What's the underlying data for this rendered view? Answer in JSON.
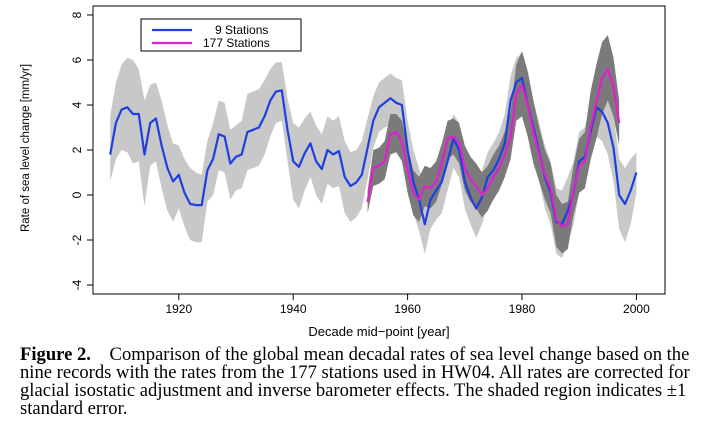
{
  "chart_data": {
    "type": "line",
    "xlabel": "Decade mid−point [year]",
    "ylabel": "Rate of sea level change [mm/yr]",
    "xlim": [
      1905,
      2005
    ],
    "ylim": [
      -4.4,
      8.4
    ],
    "x_ticks": [
      1920,
      1940,
      1960,
      1980,
      2000
    ],
    "y_ticks": [
      -4,
      -2,
      0,
      2,
      4,
      6,
      8
    ],
    "grid": false,
    "legend_position": "top-left",
    "series": [
      {
        "name": "9 Stations",
        "color": "#1f3fe0",
        "band_color": "#c8c8c8",
        "x": [
          1908,
          1909,
          1910,
          1911,
          1912,
          1913,
          1914,
          1915,
          1916,
          1917,
          1918,
          1919,
          1920,
          1921,
          1922,
          1923,
          1924,
          1925,
          1926,
          1927,
          1928,
          1929,
          1930,
          1931,
          1932,
          1933,
          1934,
          1935,
          1936,
          1937,
          1938,
          1939,
          1940,
          1941,
          1942,
          1943,
          1944,
          1945,
          1946,
          1947,
          1948,
          1949,
          1950,
          1951,
          1952,
          1953,
          1954,
          1955,
          1956,
          1957,
          1958,
          1959,
          1960,
          1961,
          1962,
          1963,
          1964,
          1965,
          1966,
          1967,
          1968,
          1969,
          1970,
          1971,
          1972,
          1973,
          1974,
          1975,
          1976,
          1977,
          1978,
          1979,
          1980,
          1981,
          1982,
          1983,
          1984,
          1985,
          1986,
          1987,
          1988,
          1989,
          1990,
          1991,
          1992,
          1993,
          1994,
          1995,
          1996,
          1997,
          1998,
          1999,
          2000
        ],
        "y": [
          1.8,
          3.2,
          3.8,
          3.9,
          3.6,
          3.6,
          1.8,
          3.2,
          3.4,
          2.2,
          1.2,
          0.6,
          0.9,
          0.1,
          -0.4,
          -0.45,
          -0.45,
          1.1,
          1.6,
          2.7,
          2.6,
          1.4,
          1.7,
          1.8,
          2.8,
          2.9,
          3.0,
          3.5,
          4.2,
          4.6,
          4.65,
          2.9,
          1.5,
          1.25,
          1.85,
          2.3,
          1.5,
          1.15,
          2.0,
          1.8,
          1.95,
          0.8,
          0.4,
          0.55,
          0.9,
          2.1,
          3.3,
          3.9,
          4.1,
          4.3,
          4.1,
          4.0,
          2.0,
          0.6,
          -0.2,
          -1.3,
          -0.2,
          0.2,
          0.6,
          1.5,
          2.5,
          2.0,
          0.6,
          -0.1,
          -0.6,
          -0.1,
          0.8,
          1.1,
          1.6,
          2.3,
          4.2,
          5.0,
          5.2,
          4.0,
          3.0,
          1.9,
          0.8,
          0.1,
          -1.2,
          -1.3,
          -0.7,
          0.1,
          1.5,
          1.7,
          2.8,
          3.9,
          3.7,
          3.2,
          2.1,
          0.0,
          -0.4,
          0.2,
          1.0
        ],
        "upper": [
          3.5,
          5.0,
          5.8,
          6.1,
          6.0,
          5.6,
          4.2,
          4.9,
          5.0,
          4.2,
          3.1,
          2.3,
          2.2,
          1.6,
          1.2,
          1.0,
          0.9,
          2.4,
          3.2,
          4.2,
          4.1,
          2.9,
          3.1,
          3.3,
          4.5,
          4.6,
          4.7,
          5.1,
          5.6,
          5.9,
          5.9,
          4.3,
          3.2,
          3.0,
          3.4,
          3.7,
          3.1,
          2.7,
          3.5,
          3.3,
          3.5,
          2.4,
          1.9,
          2.0,
          2.4,
          3.4,
          4.4,
          5.0,
          5.2,
          5.4,
          5.2,
          5.1,
          3.3,
          2.0,
          1.2,
          0.2,
          1.1,
          1.5,
          1.9,
          2.7,
          3.6,
          3.2,
          1.8,
          1.1,
          0.6,
          1.1,
          1.9,
          2.3,
          2.8,
          3.6,
          5.3,
          6.1,
          6.3,
          5.1,
          4.2,
          3.2,
          2.2,
          1.5,
          0.3,
          0.2,
          0.8,
          1.5,
          2.8,
          3.0,
          4.1,
          5.2,
          5.0,
          4.6,
          3.6,
          1.6,
          1.2,
          1.6,
          1.9
        ],
        "lower": [
          0.6,
          1.6,
          2.0,
          1.9,
          1.4,
          1.5,
          -0.5,
          1.3,
          1.5,
          0.3,
          -0.7,
          -1.2,
          -0.6,
          -1.4,
          -2.0,
          -2.1,
          -2.1,
          -0.3,
          0.0,
          1.1,
          1.0,
          -0.2,
          0.2,
          0.3,
          1.1,
          1.2,
          1.3,
          1.8,
          2.6,
          3.2,
          3.3,
          1.5,
          -0.2,
          -0.6,
          0.2,
          0.8,
          0.0,
          -0.4,
          0.5,
          0.3,
          0.4,
          -0.8,
          -1.2,
          -1.0,
          -0.6,
          0.7,
          2.1,
          2.8,
          3.0,
          3.1,
          2.9,
          2.7,
          0.6,
          -0.8,
          -1.6,
          -2.6,
          -1.5,
          -1.1,
          -0.8,
          0.2,
          1.2,
          0.8,
          -0.6,
          -1.3,
          -1.9,
          -1.3,
          -0.4,
          0.0,
          0.4,
          1.0,
          3.0,
          3.9,
          4.1,
          2.9,
          1.8,
          0.6,
          -0.6,
          -1.3,
          -2.6,
          -2.8,
          -2.2,
          -1.3,
          0.1,
          0.3,
          1.5,
          2.6,
          2.4,
          1.8,
          0.6,
          -1.5,
          -2.1,
          -1.3,
          0.1
        ]
      },
      {
        "name": "177 Stations",
        "color": "#e020d0",
        "band_color": "#7a7a7a",
        "x": [
          1953,
          1954,
          1955,
          1956,
          1957,
          1958,
          1959,
          1960,
          1961,
          1962,
          1963,
          1964,
          1965,
          1966,
          1967,
          1968,
          1969,
          1970,
          1971,
          1972,
          1973,
          1974,
          1975,
          1976,
          1977,
          1978,
          1979,
          1980,
          1981,
          1982,
          1983,
          1984,
          1985,
          1986,
          1987,
          1988,
          1989,
          1990,
          1991,
          1992,
          1993,
          1994,
          1995,
          1996,
          1997
        ],
        "y": [
          -0.3,
          1.2,
          1.3,
          1.5,
          2.7,
          2.8,
          2.4,
          1.1,
          0.1,
          -0.2,
          0.4,
          0.3,
          0.6,
          1.4,
          2.5,
          2.6,
          2.3,
          1.2,
          0.7,
          0.4,
          0.0,
          0.3,
          0.8,
          1.2,
          1.8,
          2.6,
          4.5,
          4.9,
          4.0,
          2.8,
          1.8,
          0.9,
          0.3,
          -1.1,
          -1.4,
          -1.3,
          0.2,
          1.3,
          1.5,
          3.0,
          4.1,
          5.2,
          5.6,
          4.8,
          3.2
        ],
        "upper": [
          0.2,
          2.0,
          2.1,
          2.4,
          3.6,
          3.6,
          3.3,
          2.1,
          1.1,
          0.8,
          1.3,
          1.2,
          1.5,
          2.3,
          3.3,
          3.4,
          3.2,
          2.2,
          1.7,
          1.4,
          1.0,
          1.3,
          1.8,
          2.2,
          2.8,
          3.7,
          5.8,
          6.4,
          5.5,
          4.2,
          3.0,
          2.0,
          1.4,
          0.0,
          -0.4,
          -0.3,
          1.3,
          2.5,
          2.8,
          4.6,
          5.8,
          6.8,
          7.1,
          6.1,
          4.2
        ],
        "lower": [
          -0.8,
          0.4,
          0.5,
          0.7,
          1.8,
          1.9,
          1.5,
          0.1,
          -0.9,
          -1.2,
          -0.5,
          -0.6,
          -0.3,
          0.5,
          1.6,
          1.8,
          1.4,
          0.2,
          -0.3,
          -0.6,
          -1.0,
          -0.7,
          -0.2,
          0.2,
          0.8,
          1.6,
          3.3,
          3.5,
          2.6,
          1.4,
          0.6,
          -0.2,
          -0.8,
          -2.3,
          -2.6,
          -2.4,
          -0.9,
          0.1,
          0.3,
          1.6,
          2.5,
          3.6,
          4.2,
          3.5,
          2.2
        ]
      }
    ]
  },
  "caption": {
    "label": "Figure 2.",
    "text": "Comparison of the global mean decadal rates of sea level change based on the nine records with the rates from the 177 stations used in HW04. All rates are corrected for glacial isostatic adjustment and inverse barometer effects. The shaded region indicates ±1 standard error."
  }
}
